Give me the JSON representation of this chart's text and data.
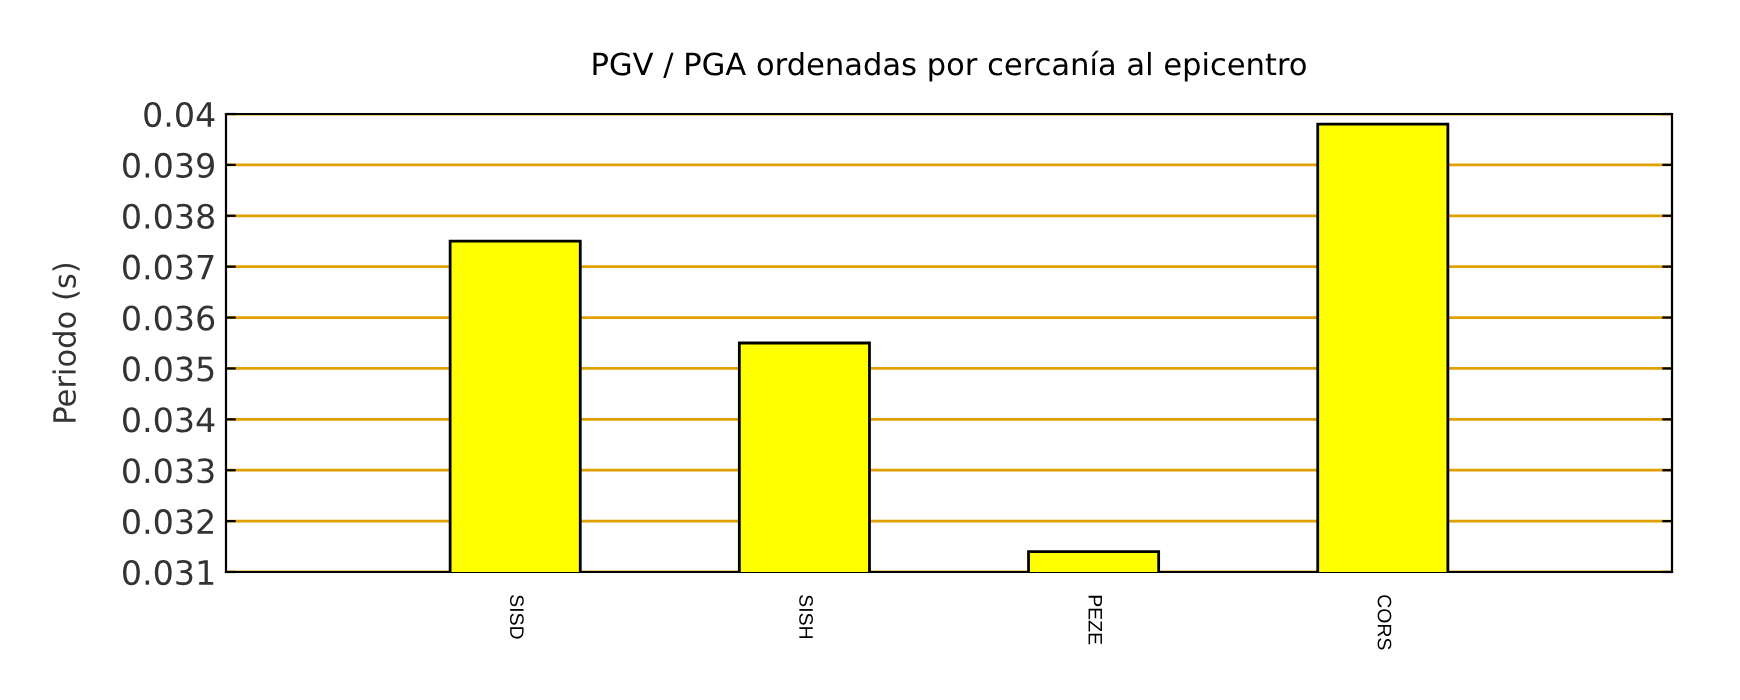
{
  "chart_data": {
    "type": "bar",
    "title": "PGV / PGA ordenadas por cercanía al epicentro",
    "ylabel": "Periodo (s)",
    "categories": [
      "SISD",
      "SISH",
      "PEZE",
      "CORS"
    ],
    "values": [
      0.0375,
      0.0355,
      0.0314,
      0.0398
    ],
    "color": "#ffff00",
    "ylim": [
      0.031,
      0.04
    ],
    "yticks": [
      0.031,
      0.032,
      0.033,
      0.034,
      0.035,
      0.036,
      0.037,
      0.038,
      0.039,
      0.04
    ],
    "grid": "y"
  }
}
